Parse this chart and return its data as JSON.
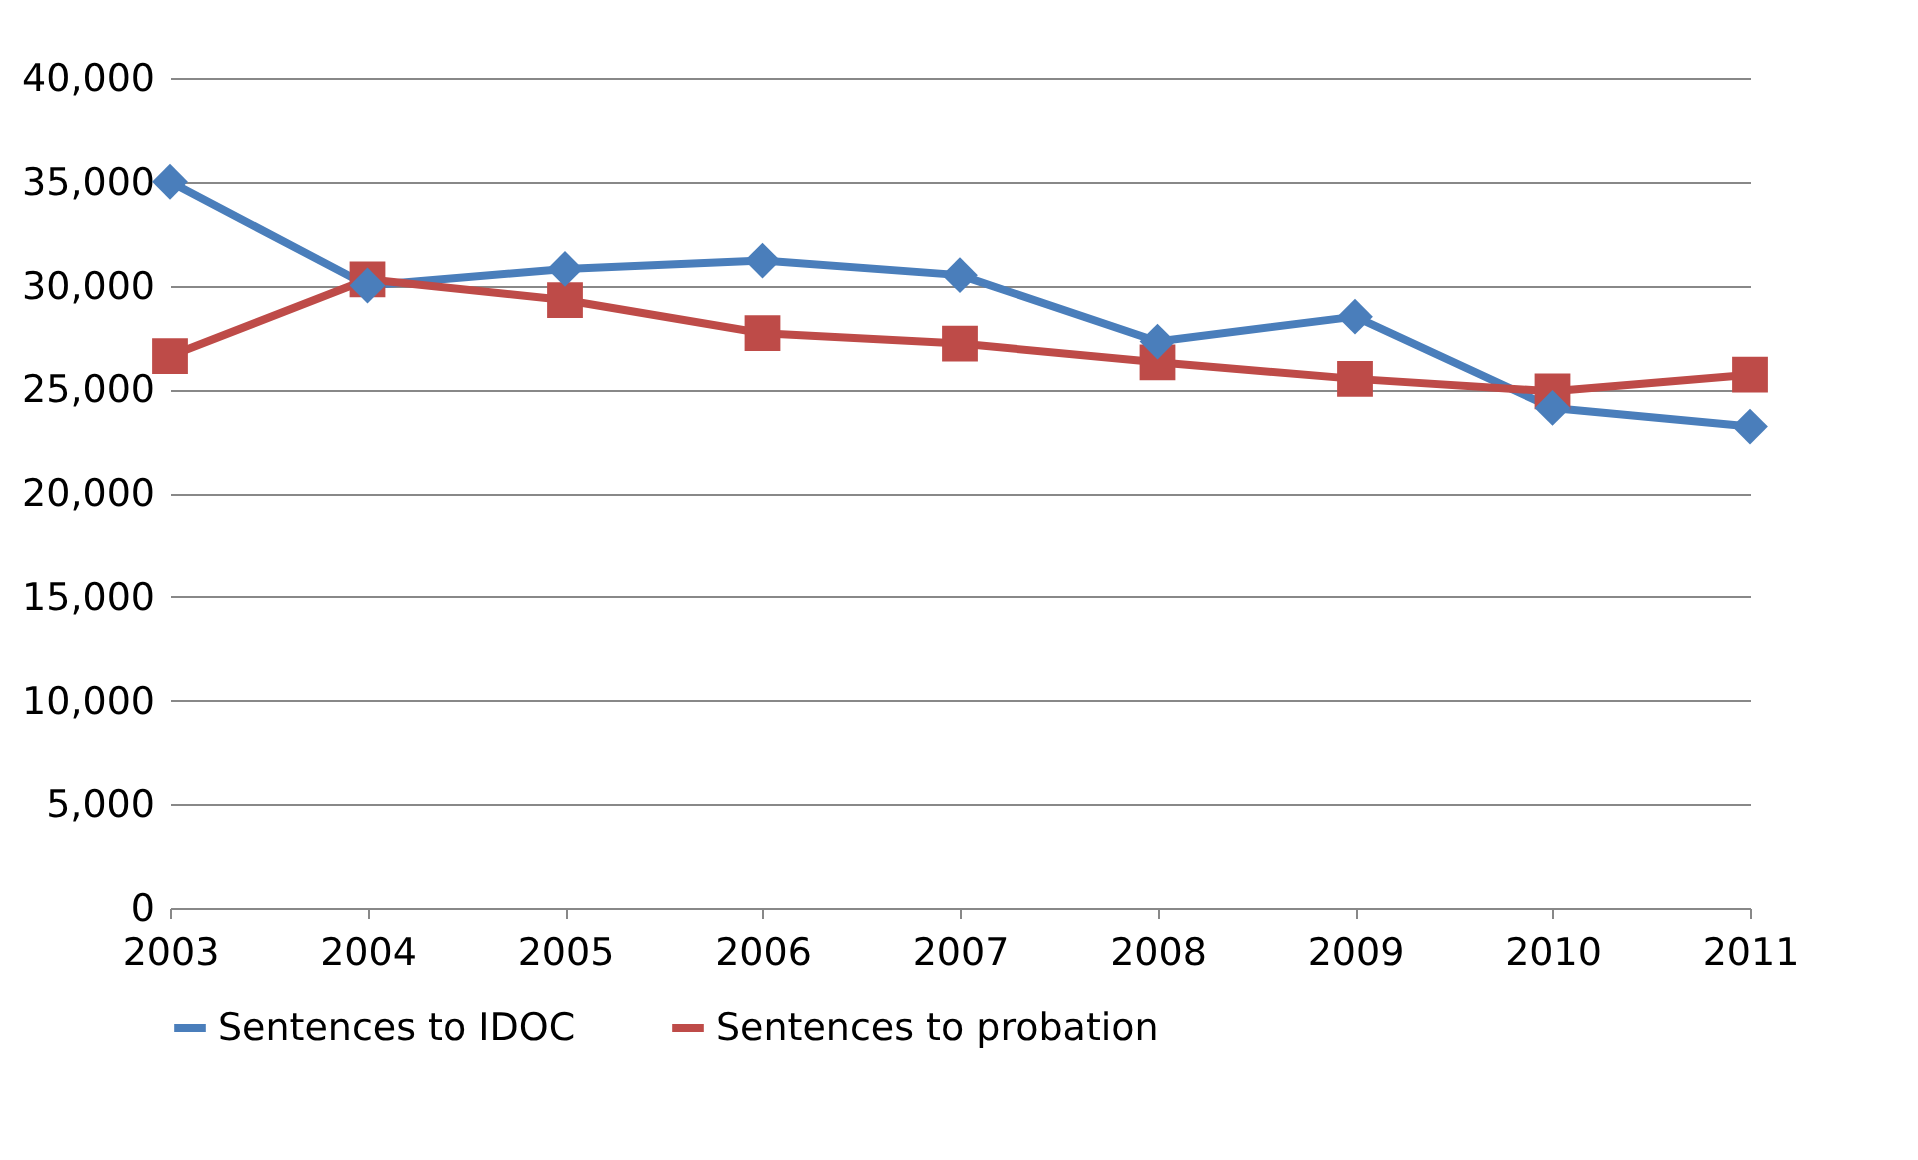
{
  "chart_data": {
    "type": "line",
    "categories": [
      "2003",
      "2004",
      "2005",
      "2006",
      "2007",
      "2008",
      "2009",
      "2010",
      "2011"
    ],
    "series": [
      {
        "name": "Sentences to IDOC",
        "color": "#4a7ebb",
        "marker": "diamond",
        "values": [
          35000,
          30000,
          30800,
          31200,
          30500,
          27300,
          28500,
          24100,
          23200
        ]
      },
      {
        "name": "Sentences to probation",
        "color": "#be4b48",
        "marker": "square",
        "values": [
          26600,
          30300,
          29300,
          27700,
          27200,
          26300,
          25500,
          24900,
          25700
        ]
      }
    ],
    "ylim": [
      0,
      40000
    ],
    "yticks": [
      0,
      {
        "value": 5000,
        "label": "5,000"
      },
      {
        "value": 10000,
        "label": "10,000"
      },
      {
        "value": 15000,
        "label": "15,000"
      },
      {
        "value": 20000,
        "label": "20,000"
      },
      {
        "value": 25000,
        "label": "25,000"
      },
      {
        "value": 30000,
        "label": "30,000"
      },
      {
        "value": 35000,
        "label": "35,000"
      },
      {
        "value": 40000,
        "label": "40,000"
      }
    ],
    "grid": "y",
    "legend": "bottom",
    "line_style": "solid"
  }
}
